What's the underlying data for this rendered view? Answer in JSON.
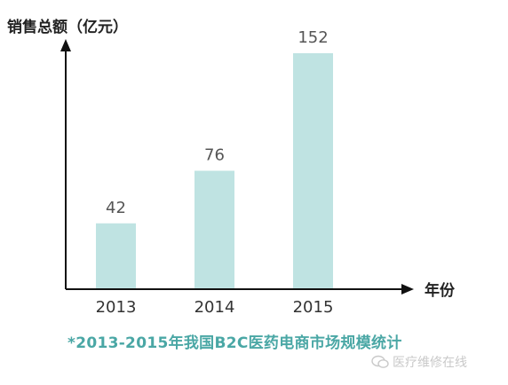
{
  "chart_data": {
    "type": "bar",
    "categories": [
      "2013",
      "2014",
      "2015"
    ],
    "values": [
      42,
      76,
      152
    ],
    "data_labels": [
      "42",
      "76",
      "152"
    ],
    "ylabel": "销售总额（亿元）",
    "xlabel": "年份",
    "bar_color": "#bfe3e2",
    "ylim": [
      0,
      170
    ],
    "grid": false,
    "legend": "none"
  },
  "caption": "*2013-2015年我国B2C医药电商市场规模统计",
  "watermark": {
    "text": "医疗维修在线",
    "icon": "wechat-icon"
  }
}
